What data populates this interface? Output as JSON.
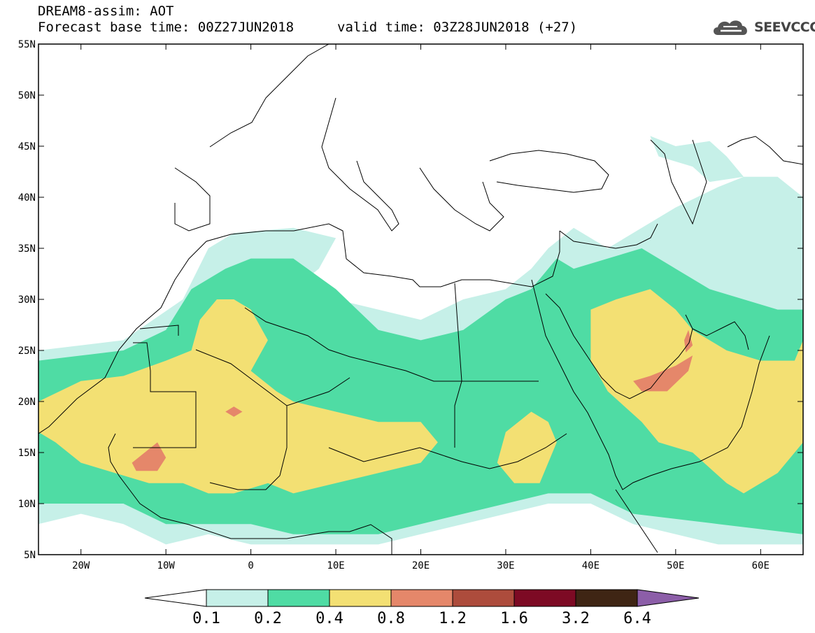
{
  "header": {
    "title": "DREAM8-assim: AOT",
    "base_time": "Forecast base time: 00Z27JUN2018",
    "valid_time": "valid time: 03Z28JUN2018 (+27)"
  },
  "logo": {
    "text": "SEEVCCC",
    "icon": "cloud-logo-icon",
    "color": "#555555"
  },
  "map": {
    "lon_range": [
      -25,
      65
    ],
    "lat_range": [
      5,
      55
    ],
    "lat_ticks": [
      {
        "value": 55,
        "label": "55N"
      },
      {
        "value": 50,
        "label": "50N"
      },
      {
        "value": 45,
        "label": "45N"
      },
      {
        "value": 40,
        "label": "40N"
      },
      {
        "value": 35,
        "label": "35N"
      },
      {
        "value": 30,
        "label": "30N"
      },
      {
        "value": 25,
        "label": "25N"
      },
      {
        "value": 20,
        "label": "20N"
      },
      {
        "value": 15,
        "label": "15N"
      },
      {
        "value": 10,
        "label": "10N"
      },
      {
        "value": 5,
        "label": "5N"
      }
    ],
    "lon_ticks": [
      {
        "value": -20,
        "label": "20W"
      },
      {
        "value": -10,
        "label": "10W"
      },
      {
        "value": 0,
        "label": "0"
      },
      {
        "value": 10,
        "label": "10E"
      },
      {
        "value": 20,
        "label": "20E"
      },
      {
        "value": 30,
        "label": "30E"
      },
      {
        "value": 40,
        "label": "40E"
      },
      {
        "value": 50,
        "label": "50E"
      },
      {
        "value": 60,
        "label": "60E"
      }
    ]
  },
  "colorbar": {
    "colors": [
      "#ffffff",
      "#c6f0e8",
      "#4fdca4",
      "#f3e073",
      "#e5876a",
      "#ad4c3c",
      "#7d0a24",
      "#3f2514",
      "#8c5ea8"
    ],
    "labels": [
      "0.1",
      "0.2",
      "0.4",
      "0.8",
      "1.2",
      "1.6",
      "3.2",
      "6.4"
    ]
  },
  "chart_data": {
    "type": "heatmap",
    "variable": "AOT",
    "levels": [
      0.1,
      0.2,
      0.4,
      0.8,
      1.2,
      1.6,
      3.2,
      6.4
    ],
    "regions": [
      {
        "level": 0.1,
        "polygon": [
          [
            -25,
            8
          ],
          [
            -25,
            25
          ],
          [
            -15,
            26
          ],
          [
            -8,
            30
          ],
          [
            -5,
            35
          ],
          [
            -2,
            36.5
          ],
          [
            5,
            37
          ],
          [
            10,
            36
          ],
          [
            8,
            33
          ],
          [
            5,
            31
          ],
          [
            10,
            30
          ],
          [
            15,
            29
          ],
          [
            20,
            28
          ],
          [
            25,
            30
          ],
          [
            30,
            31
          ],
          [
            33,
            33
          ],
          [
            35,
            35
          ],
          [
            38,
            37
          ],
          [
            42,
            35
          ],
          [
            46,
            37
          ],
          [
            50,
            39
          ],
          [
            55,
            41
          ],
          [
            58,
            42
          ],
          [
            62,
            42
          ],
          [
            65,
            40
          ],
          [
            65,
            6
          ],
          [
            55,
            6
          ],
          [
            45,
            8
          ],
          [
            40,
            10
          ],
          [
            35,
            10
          ],
          [
            30,
            9
          ],
          [
            25,
            8
          ],
          [
            20,
            7
          ],
          [
            15,
            6
          ],
          [
            10,
            6
          ],
          [
            5,
            6
          ],
          [
            0,
            6
          ],
          [
            -5,
            7
          ],
          [
            -10,
            6
          ],
          [
            -15,
            8
          ],
          [
            -20,
            9
          ]
        ]
      },
      {
        "level": 0.1,
        "polygon": [
          [
            47,
            46
          ],
          [
            50,
            45
          ],
          [
            54,
            45.5
          ],
          [
            56,
            44
          ],
          [
            58,
            42
          ],
          [
            54,
            41.5
          ],
          [
            52,
            43
          ],
          [
            48,
            44
          ]
        ]
      },
      {
        "level": 0.2,
        "polygon": [
          [
            -25,
            10
          ],
          [
            -25,
            24
          ],
          [
            -15,
            25
          ],
          [
            -10,
            27
          ],
          [
            -7,
            31
          ],
          [
            -3,
            33
          ],
          [
            0,
            34
          ],
          [
            5,
            34
          ],
          [
            10,
            31
          ],
          [
            15,
            27
          ],
          [
            20,
            26
          ],
          [
            25,
            27
          ],
          [
            30,
            30
          ],
          [
            33,
            31
          ],
          [
            36,
            34
          ],
          [
            38,
            33
          ],
          [
            42,
            34
          ],
          [
            46,
            35
          ],
          [
            50,
            33
          ],
          [
            54,
            31
          ],
          [
            58,
            30
          ],
          [
            62,
            29
          ],
          [
            65,
            29
          ],
          [
            65,
            7
          ],
          [
            55,
            8
          ],
          [
            45,
            9
          ],
          [
            40,
            11
          ],
          [
            35,
            11
          ],
          [
            30,
            10
          ],
          [
            25,
            9
          ],
          [
            20,
            8
          ],
          [
            15,
            7
          ],
          [
            10,
            7
          ],
          [
            5,
            7
          ],
          [
            0,
            8
          ],
          [
            -5,
            8
          ],
          [
            -10,
            8
          ],
          [
            -15,
            10
          ],
          [
            -20,
            10
          ]
        ]
      },
      {
        "level": 0.4,
        "polygon": [
          [
            -25,
            17
          ],
          [
            -25,
            20
          ],
          [
            -20,
            22
          ],
          [
            -15,
            22.5
          ],
          [
            -10,
            24
          ],
          [
            -7,
            25
          ],
          [
            -6,
            28
          ],
          [
            -4,
            30
          ],
          [
            -2,
            30
          ],
          [
            0,
            29
          ],
          [
            2,
            26
          ],
          [
            0,
            23
          ],
          [
            3,
            21
          ],
          [
            5,
            20
          ],
          [
            10,
            19
          ],
          [
            15,
            18
          ],
          [
            20,
            18
          ],
          [
            22,
            16
          ],
          [
            20,
            14
          ],
          [
            15,
            13
          ],
          [
            10,
            12
          ],
          [
            5,
            11
          ],
          [
            2,
            12
          ],
          [
            -2,
            11
          ],
          [
            -5,
            11
          ],
          [
            -8,
            12
          ],
          [
            -12,
            12
          ],
          [
            -16,
            13
          ],
          [
            -20,
            14
          ],
          [
            -23,
            16
          ]
        ]
      },
      {
        "level": 0.4,
        "polygon": [
          [
            30,
            17
          ],
          [
            33,
            19
          ],
          [
            35,
            18
          ],
          [
            36,
            16
          ],
          [
            34,
            12
          ],
          [
            31,
            12
          ],
          [
            29,
            14
          ]
        ]
      },
      {
        "level": 0.4,
        "polygon": [
          [
            40,
            29
          ],
          [
            43,
            30
          ],
          [
            47,
            31
          ],
          [
            50,
            29
          ],
          [
            52,
            27
          ],
          [
            56,
            25
          ],
          [
            60,
            24
          ],
          [
            64,
            24
          ],
          [
            65,
            26
          ],
          [
            65,
            16
          ],
          [
            62,
            13
          ],
          [
            58,
            11
          ],
          [
            56,
            12
          ],
          [
            52,
            15
          ],
          [
            48,
            16
          ],
          [
            46,
            18
          ],
          [
            42,
            21
          ],
          [
            40,
            24
          ]
        ]
      },
      {
        "level": 0.8,
        "polygon": [
          [
            -14,
            14
          ],
          [
            -11,
            16
          ],
          [
            -10,
            14.5
          ],
          [
            -11,
            13.2
          ],
          [
            -13.5,
            13.2
          ]
        ]
      },
      {
        "level": 0.8,
        "polygon": [
          [
            47,
            22.5
          ],
          [
            50,
            23.5
          ],
          [
            52,
            24.5
          ],
          [
            51.5,
            23
          ],
          [
            49,
            21
          ],
          [
            46,
            21
          ],
          [
            45,
            22
          ]
        ]
      },
      {
        "level": 0.8,
        "polygon": [
          [
            -3,
            19
          ],
          [
            -2,
            19.5
          ],
          [
            -1,
            19
          ],
          [
            -2,
            18.5
          ]
        ]
      },
      {
        "level": 0.8,
        "polygon": [
          [
            51,
            26
          ],
          [
            51.5,
            27
          ],
          [
            52,
            25.5
          ],
          [
            51.2,
            24.8
          ]
        ]
      }
    ]
  }
}
